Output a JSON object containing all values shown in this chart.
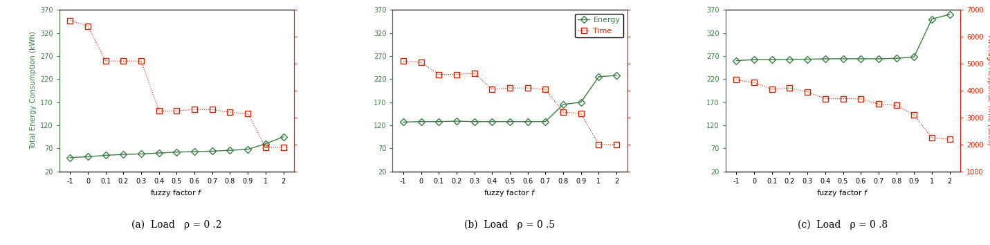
{
  "x_labels": [
    "-1",
    "0",
    "0.1",
    "0.2",
    "0.3",
    "0.4",
    "0.5",
    "0.6",
    "0.7",
    "0.8",
    "0.9",
    "1",
    "2"
  ],
  "x_indices": [
    0,
    1,
    2,
    3,
    4,
    5,
    6,
    7,
    8,
    9,
    10,
    11,
    12
  ],
  "subplots": [
    {
      "subtitle": "(a)  Load   ρ = 0 .2",
      "energy": [
        50,
        52,
        55,
        57,
        58,
        60,
        62,
        63,
        64,
        66,
        68,
        80,
        95
      ],
      "time": [
        6600,
        6400,
        5100,
        5100,
        5100,
        3250,
        3250,
        3300,
        3300,
        3200,
        3150,
        1900,
        1900
      ]
    },
    {
      "subtitle": "(b)  Load   ρ = 0 .5",
      "energy": [
        127,
        128,
        128,
        129,
        128,
        128,
        128,
        128,
        128,
        165,
        170,
        225,
        228
      ],
      "time": [
        5100,
        5050,
        4600,
        4600,
        4650,
        4050,
        4100,
        4100,
        4050,
        3200,
        3150,
        2000,
        2000
      ]
    },
    {
      "subtitle": "(c)  Load   ρ = 0 .8",
      "energy": [
        260,
        262,
        262,
        263,
        263,
        264,
        264,
        264,
        264,
        265,
        268,
        350,
        360
      ],
      "time": [
        4400,
        4300,
        4050,
        4100,
        3950,
        3700,
        3700,
        3700,
        3500,
        3450,
        3100,
        2250,
        2200
      ]
    }
  ],
  "ylim_left": [
    20,
    370
  ],
  "ylim_right": [
    1000,
    7000
  ],
  "yticks_left": [
    20,
    70,
    120,
    170,
    220,
    270,
    320,
    370
  ],
  "yticks_right": [
    1000,
    2000,
    3000,
    4000,
    5000,
    6000,
    7000
  ],
  "xlabel": "fuzzy factor f",
  "ylabel_left": "Total Energy Consumption (kWh)",
  "ylabel_right": "Average Response Time (secs)",
  "energy_color": "#3a7d44",
  "time_color": "#cc2200",
  "legend_labels": [
    "Energy",
    "Time"
  ],
  "fig_width": 14.31,
  "fig_height": 3.54,
  "dpi": 100
}
